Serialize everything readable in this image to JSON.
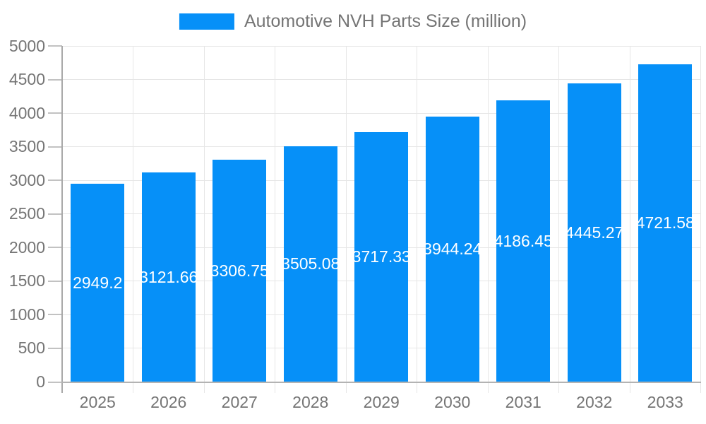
{
  "page": {
    "background": "#ffffff"
  },
  "legend": {
    "label": "Automotive NVH Parts Size (million)"
  },
  "chart_data": {
    "type": "bar",
    "title": "Automotive NVH Parts Size (million)",
    "xlabel": "",
    "ylabel": "",
    "categories": [
      "2025",
      "2026",
      "2027",
      "2028",
      "2029",
      "2030",
      "2031",
      "2032",
      "2033"
    ],
    "values": [
      2949.2,
      3121.66,
      3306.75,
      3505.08,
      3717.33,
      3944.24,
      4186.45,
      4445.27,
      4721.58
    ],
    "bar_labels": [
      "2949.2",
      "3121.66",
      "3306.75",
      "3505.08",
      "3717.33",
      "3944.24",
      "4186.45",
      "4445.27",
      "4721.58"
    ],
    "ylim": [
      0,
      5000
    ],
    "yticks": [
      0,
      500,
      1000,
      1500,
      2000,
      2500,
      3000,
      3500,
      4000,
      4500,
      5000
    ],
    "grid": true,
    "legend_position": "top-center",
    "colors": {
      "bar": "#0690f8",
      "bar_label": "#ffffff",
      "axis_text": "#757575",
      "gridline": "#e6e6e6",
      "axis_line": "#a9a9a9"
    }
  }
}
